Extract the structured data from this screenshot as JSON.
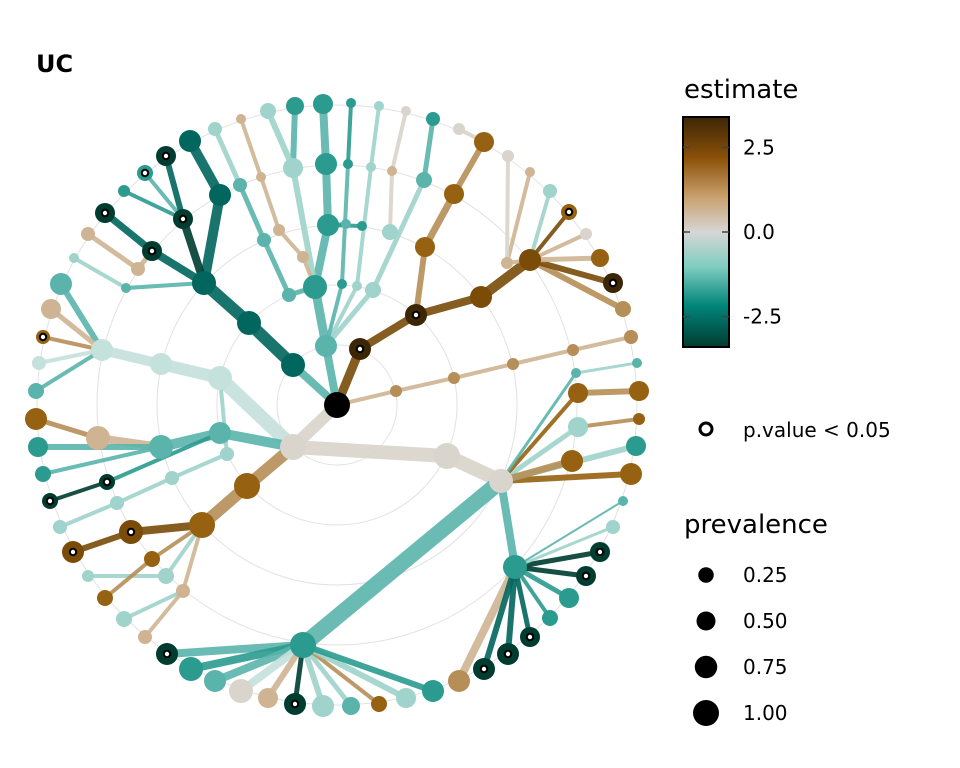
{
  "title": "UC",
  "legend": {
    "estimate_title": "estimate",
    "estimate_ticks": [
      {
        "label": "2.5",
        "value": 2.5
      },
      {
        "label": "0.0",
        "value": 0.0
      },
      {
        "label": "-2.5",
        "value": -2.5
      }
    ],
    "estimate_range": [
      -3.4,
      3.4
    ],
    "pvalue_label": "p.value < 0.05",
    "prevalence_title": "prevalence",
    "prevalence_items": [
      {
        "label": "0.25",
        "value": 0.25
      },
      {
        "label": "0.50",
        "value": 0.5
      },
      {
        "label": "0.75",
        "value": 0.75
      },
      {
        "label": "1.00",
        "value": 1.0
      }
    ]
  },
  "colors": {
    "strong_negative": "#003c30",
    "negative": "#01857a",
    "light_negative": "#80cdc1",
    "neutral": "#d4d4d4",
    "light_positive": "#dfc27d",
    "positive": "#8c5109",
    "strong_positive": "#3d2606",
    "root": "#000000",
    "grid": "#dddddd"
  }
}
